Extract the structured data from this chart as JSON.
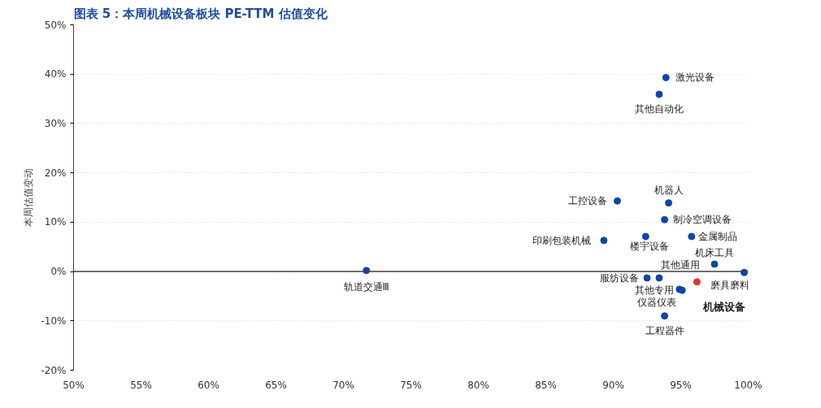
{
  "chart_data": {
    "type": "scatter",
    "title": "图表 5：本周机械设备板块 PE-TTM 估值变化",
    "ylabel": "本周估值变动",
    "xlim": [
      50,
      100
    ],
    "xticks": [
      {
        "value": 50,
        "label": "50%"
      },
      {
        "value": 55,
        "label": "55%"
      },
      {
        "value": 60,
        "label": "60%"
      },
      {
        "value": 65,
        "label": "65%"
      },
      {
        "value": 70,
        "label": "70%"
      },
      {
        "value": 75,
        "label": "75%"
      },
      {
        "value": 80,
        "label": "80%"
      },
      {
        "value": 85,
        "label": "85%"
      },
      {
        "value": 90,
        "label": "90%"
      },
      {
        "value": 95,
        "label": "95%"
      },
      {
        "value": 100,
        "label": "100%"
      }
    ],
    "ylim": [
      -20,
      50
    ],
    "yticks": [
      {
        "value": -20,
        "label": "-20%"
      },
      {
        "value": -10,
        "label": "-10%"
      },
      {
        "value": 0,
        "label": "0%"
      },
      {
        "value": 10,
        "label": "10%"
      },
      {
        "value": 20,
        "label": "20%"
      },
      {
        "value": 30,
        "label": "30%"
      },
      {
        "value": 40,
        "label": "40%"
      },
      {
        "value": 50,
        "label": "50%"
      }
    ],
    "grid": "y",
    "marker": "circle",
    "ref_lines": [
      {
        "axis": "y",
        "value": 0,
        "color": "#404040"
      }
    ],
    "series": [
      {
        "name": "激光设备",
        "color": "#0b47a8",
        "x": [
          93.9
        ],
        "values": [
          39.3
        ]
      },
      {
        "name": "其他自动化",
        "color": "#0b47a8",
        "x": [
          93.4
        ],
        "values": [
          35.9
        ]
      },
      {
        "name": "工控设备",
        "color": "#0b47a8",
        "x": [
          90.3
        ],
        "values": [
          14.3
        ]
      },
      {
        "name": "机器人",
        "color": "#0b47a8",
        "x": [
          94.1
        ],
        "values": [
          13.9
        ]
      },
      {
        "name": "制冷空调设备",
        "color": "#0b47a8",
        "x": [
          93.8
        ],
        "values": [
          10.5
        ]
      },
      {
        "name": "印刷包装机械",
        "color": "#0b47a8",
        "x": [
          89.3
        ],
        "values": [
          6.3
        ]
      },
      {
        "name": "楼宇设备",
        "color": "#0b47a8",
        "x": [
          92.4
        ],
        "values": [
          7.1
        ]
      },
      {
        "name": "金属制品",
        "color": "#0b47a8",
        "x": [
          95.8
        ],
        "values": [
          7.1
        ]
      },
      {
        "name": "机床工具",
        "color": "#0b47a8",
        "x": [
          97.5
        ],
        "values": [
          1.5
        ]
      },
      {
        "name": "磨具磨料",
        "color": "#0b47a8",
        "x": [
          99.7
        ],
        "values": [
          -0.2
        ]
      },
      {
        "name": "服纺设备",
        "color": "#0b47a8",
        "x": [
          92.5
        ],
        "values": [
          -1.3
        ]
      },
      {
        "name": "其他通用",
        "color": "#0b47a8",
        "x": [
          93.4
        ],
        "values": [
          -1.3
        ]
      },
      {
        "name": "其他专用",
        "color": "#0b47a8",
        "x": [
          95.1
        ],
        "values": [
          -3.8
        ]
      },
      {
        "name": "仪器仪表",
        "color": "#0b47a8",
        "x": [
          94.9
        ],
        "values": [
          -3.6
        ]
      },
      {
        "name": "工程器件",
        "color": "#0b47a8",
        "x": [
          93.8
        ],
        "values": [
          -9.0
        ]
      },
      {
        "name": "机械设备",
        "color": "#e8312f",
        "x": [
          96.2
        ],
        "values": [
          -2.1
        ]
      },
      {
        "name": "轨道交通Ⅲ",
        "color": "#0b47a8",
        "x": [
          71.7
        ],
        "values": [
          0.2
        ]
      }
    ]
  }
}
